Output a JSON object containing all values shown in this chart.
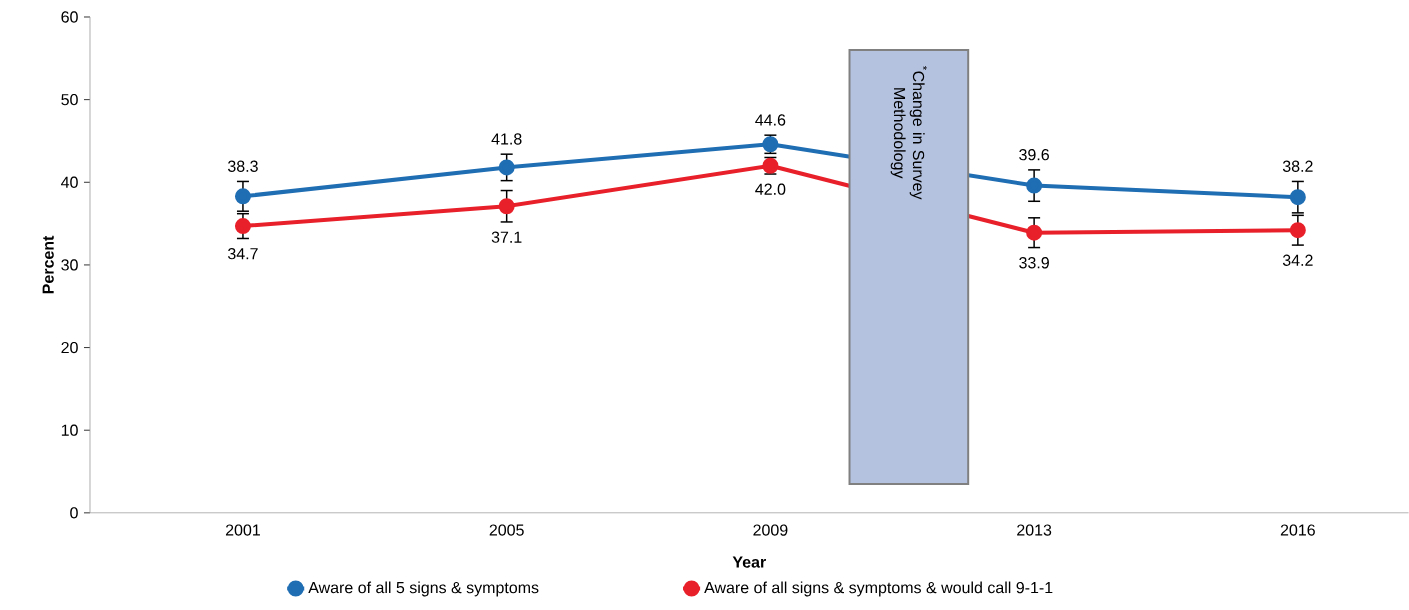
{
  "chart_data": {
    "type": "line",
    "xlabel": "Year",
    "ylabel": "Percent",
    "categories": [
      "2001",
      "2005",
      "2009",
      "2013",
      "2016"
    ],
    "series": [
      {
        "name": "Aware of all 5 signs & symptoms",
        "color": "#1f6db3",
        "values": [
          38.3,
          41.8,
          44.6,
          39.6,
          38.2
        ],
        "value_labels": [
          "38.3",
          "41.8",
          "44.6",
          "39.6",
          "38.2"
        ],
        "errors": [
          1.8,
          1.6,
          1.1,
          1.9,
          1.9
        ]
      },
      {
        "name": "Aware of all signs & symptoms & would call 9-1-1",
        "color": "#e8202a",
        "values": [
          34.7,
          37.1,
          42.0,
          33.9,
          34.2
        ],
        "value_labels": [
          "34.7",
          "37.1",
          "42.0",
          "33.9",
          "34.2"
        ],
        "errors": [
          1.5,
          1.9,
          1.0,
          1.8,
          1.8
        ]
      }
    ],
    "ylim": [
      0,
      60
    ],
    "yticks": [
      0,
      10,
      20,
      30,
      40,
      50,
      60
    ],
    "annotations": [
      "$^{*}$Change in Survey Methodology"
    ],
    "legend": "bottom",
    "marker": "circle",
    "line_style": "solid",
    "grid": false
  }
}
